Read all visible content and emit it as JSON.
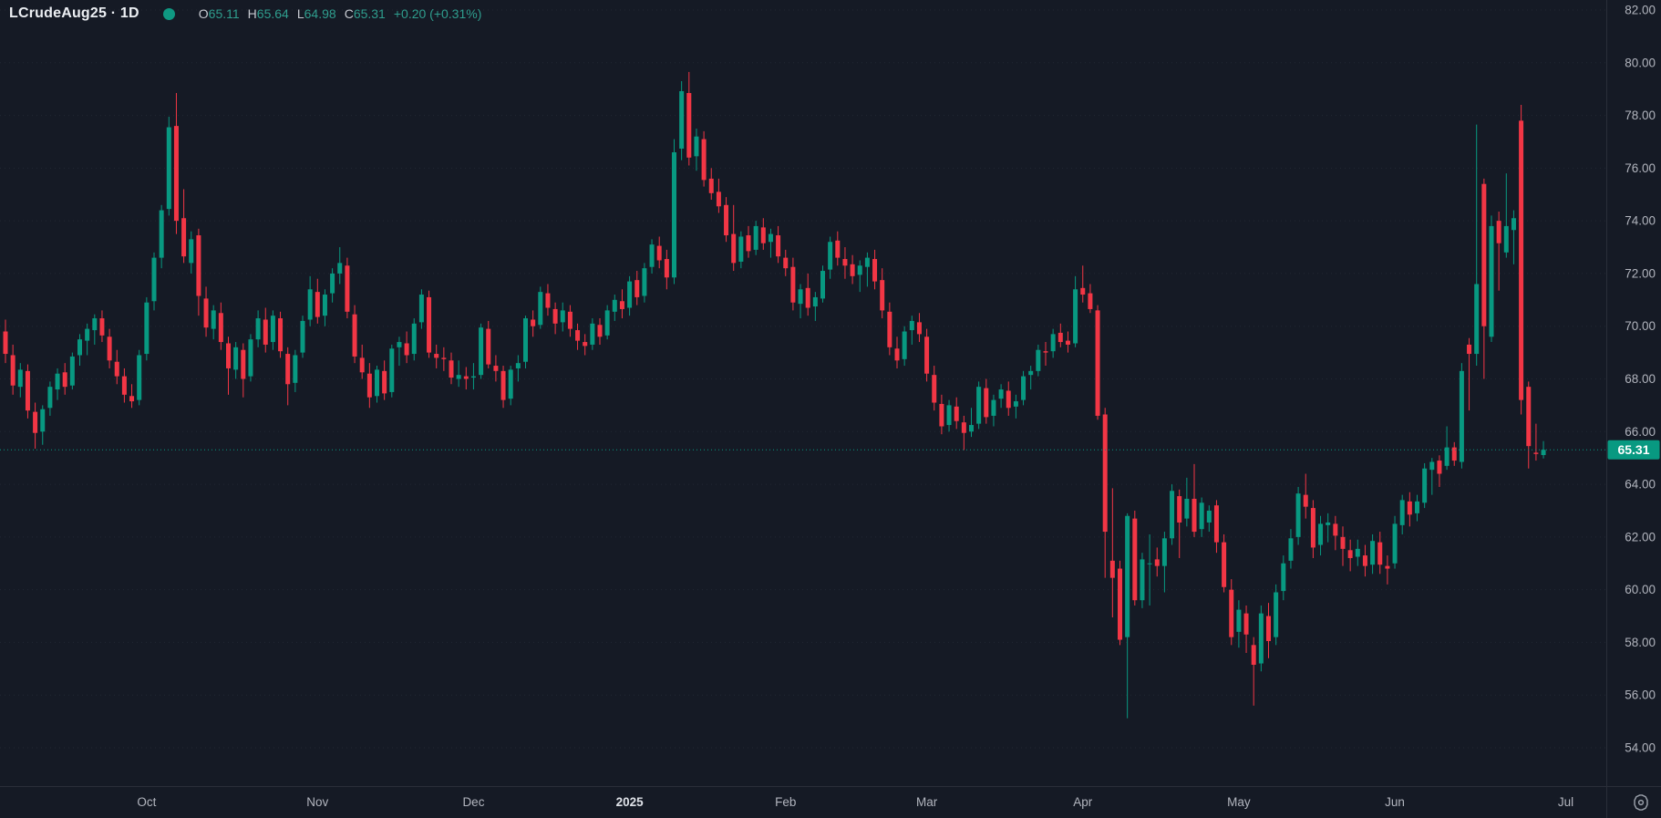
{
  "header": {
    "title": "LCrudeAug25 · 1D",
    "status_dot": "data-status-dot",
    "o_label": "O",
    "o_value": "65.11",
    "h_label": "H",
    "h_value": "65.64",
    "l_label": "L",
    "l_value": "64.98",
    "c_label": "C",
    "c_value": "65.31",
    "change": "+0.20 (+0.31%)"
  },
  "colors": {
    "background": "#151a25",
    "up": "#089981",
    "down": "#f23645",
    "axis_text": "#b2b5be",
    "axis_text_bright": "#dfe2e8",
    "grid": "rgba(134,144,166,0.12)",
    "border": "#2a2e39",
    "last_price_line": "#089981",
    "badge_bg": "#089981",
    "badge_text": "#ffffff",
    "header_value": "#2f9e8e",
    "gear": "#9aa0aa"
  },
  "price_axis": {
    "labels": [
      "82.00",
      "80.00",
      "78.00",
      "76.00",
      "74.00",
      "72.00",
      "70.00",
      "68.00",
      "66.00",
      "64.00",
      "62.00",
      "60.00",
      "58.00",
      "56.00",
      "54.00"
    ]
  },
  "last_price_badge": "65.31",
  "chart_data": {
    "type": "candlestick",
    "title": "LCrudeAug25 · 1D",
    "symbol": "LCrudeAug25",
    "timeframe": "1D",
    "last_price": 65.31,
    "change": 0.2,
    "change_pct": 0.31,
    "y_axis": {
      "min": 54,
      "max": 82,
      "step": 2,
      "grid": true
    },
    "x_axis_months": [
      {
        "label": "Oct",
        "index": 19,
        "bold": false
      },
      {
        "label": "Nov",
        "index": 42,
        "bold": false
      },
      {
        "label": "Dec",
        "index": 63,
        "bold": false
      },
      {
        "label": "2025",
        "index": 84,
        "bold": true
      },
      {
        "label": "Feb",
        "index": 105,
        "bold": false
      },
      {
        "label": "Mar",
        "index": 124,
        "bold": false
      },
      {
        "label": "Apr",
        "index": 145,
        "bold": false
      },
      {
        "label": "May",
        "index": 166,
        "bold": false
      },
      {
        "label": "Jun",
        "index": 187,
        "bold": false
      },
      {
        "label": "Jul",
        "index": 210,
        "bold": false
      }
    ],
    "ohlc_format": [
      "open",
      "high",
      "low",
      "close"
    ],
    "ohlc": [
      [
        69.8,
        70.25,
        68.6,
        68.95
      ],
      [
        68.9,
        69.3,
        67.4,
        67.75
      ],
      [
        67.7,
        68.6,
        67.3,
        68.35
      ],
      [
        68.3,
        68.55,
        66.5,
        66.8
      ],
      [
        66.75,
        67.1,
        65.35,
        65.95
      ],
      [
        66.0,
        67.0,
        65.5,
        66.85
      ],
      [
        66.9,
        67.9,
        66.6,
        67.7
      ],
      [
        67.6,
        68.4,
        67.2,
        68.2
      ],
      [
        68.25,
        68.6,
        67.4,
        67.7
      ],
      [
        67.75,
        69.0,
        67.6,
        68.85
      ],
      [
        68.9,
        69.7,
        68.5,
        69.5
      ],
      [
        69.45,
        70.1,
        68.9,
        69.9
      ],
      [
        69.85,
        70.45,
        69.3,
        70.3
      ],
      [
        70.3,
        70.6,
        69.4,
        69.65
      ],
      [
        69.6,
        69.9,
        68.4,
        68.7
      ],
      [
        68.65,
        69.1,
        67.8,
        68.1
      ],
      [
        68.1,
        68.4,
        67.1,
        67.4
      ],
      [
        67.35,
        67.8,
        66.9,
        67.15
      ],
      [
        67.2,
        69.1,
        67.0,
        68.9
      ],
      [
        68.95,
        71.1,
        68.7,
        70.9
      ],
      [
        70.95,
        72.8,
        70.6,
        72.6
      ],
      [
        72.6,
        74.6,
        72.2,
        74.4
      ],
      [
        74.45,
        77.95,
        74.2,
        77.55
      ],
      [
        77.6,
        78.85,
        73.5,
        74.0
      ],
      [
        74.1,
        75.2,
        72.4,
        72.65
      ],
      [
        72.4,
        73.6,
        72.0,
        73.3
      ],
      [
        73.45,
        73.7,
        70.4,
        71.15
      ],
      [
        71.05,
        71.5,
        69.6,
        69.95
      ],
      [
        69.9,
        70.8,
        69.5,
        70.6
      ],
      [
        70.5,
        70.9,
        69.1,
        69.4
      ],
      [
        69.35,
        69.6,
        67.4,
        68.4
      ],
      [
        68.35,
        69.4,
        68.0,
        69.2
      ],
      [
        69.1,
        69.35,
        67.3,
        68.0
      ],
      [
        68.1,
        69.7,
        67.9,
        69.5
      ],
      [
        69.5,
        70.6,
        69.2,
        70.3
      ],
      [
        70.25,
        70.7,
        69.0,
        69.3
      ],
      [
        69.4,
        70.6,
        69.1,
        70.4
      ],
      [
        70.3,
        70.55,
        68.8,
        69.05
      ],
      [
        68.95,
        69.2,
        67.0,
        67.8
      ],
      [
        67.85,
        69.1,
        67.5,
        68.9
      ],
      [
        69.0,
        70.4,
        68.8,
        70.2
      ],
      [
        70.25,
        71.9,
        70.0,
        71.4
      ],
      [
        71.3,
        71.8,
        70.1,
        70.35
      ],
      [
        70.4,
        71.4,
        70.0,
        71.2
      ],
      [
        71.25,
        72.2,
        70.9,
        72.0
      ],
      [
        72.0,
        73.0,
        71.6,
        72.4
      ],
      [
        72.3,
        72.6,
        70.3,
        70.55
      ],
      [
        70.45,
        70.8,
        68.6,
        68.85
      ],
      [
        68.8,
        69.3,
        68.0,
        68.25
      ],
      [
        68.2,
        68.6,
        66.9,
        67.3
      ],
      [
        67.35,
        68.5,
        67.1,
        68.35
      ],
      [
        68.3,
        68.7,
        67.2,
        67.45
      ],
      [
        67.5,
        69.3,
        67.3,
        69.15
      ],
      [
        69.2,
        69.6,
        68.5,
        69.4
      ],
      [
        69.35,
        69.8,
        68.6,
        68.9
      ],
      [
        68.95,
        70.3,
        68.7,
        70.1
      ],
      [
        70.15,
        71.4,
        69.9,
        71.2
      ],
      [
        71.1,
        71.35,
        68.8,
        69.0
      ],
      [
        68.95,
        69.3,
        68.4,
        68.8
      ],
      [
        68.8,
        69.2,
        68.3,
        68.75
      ],
      [
        68.7,
        69.0,
        67.8,
        68.05
      ],
      [
        68.0,
        68.7,
        67.7,
        68.15
      ],
      [
        68.1,
        68.45,
        67.6,
        68.0
      ],
      [
        68.05,
        68.6,
        67.6,
        68.1
      ],
      [
        68.15,
        70.1,
        68.0,
        69.95
      ],
      [
        69.9,
        70.2,
        68.4,
        68.55
      ],
      [
        68.5,
        68.9,
        67.9,
        68.3
      ],
      [
        68.3,
        68.5,
        66.9,
        67.2
      ],
      [
        67.25,
        68.5,
        67.0,
        68.35
      ],
      [
        68.4,
        68.9,
        67.9,
        68.6
      ],
      [
        68.65,
        70.4,
        68.4,
        70.3
      ],
      [
        70.25,
        70.6,
        69.6,
        70.0
      ],
      [
        70.05,
        71.5,
        69.9,
        71.3
      ],
      [
        71.25,
        71.6,
        70.4,
        70.7
      ],
      [
        70.65,
        70.9,
        69.7,
        70.1
      ],
      [
        70.15,
        70.9,
        69.8,
        70.6
      ],
      [
        70.55,
        70.8,
        69.6,
        69.9
      ],
      [
        69.85,
        70.1,
        69.1,
        69.45
      ],
      [
        69.4,
        69.7,
        68.9,
        69.25
      ],
      [
        69.3,
        70.3,
        69.1,
        70.1
      ],
      [
        70.05,
        70.3,
        69.3,
        69.6
      ],
      [
        69.65,
        70.8,
        69.5,
        70.6
      ],
      [
        70.55,
        71.2,
        70.2,
        71.0
      ],
      [
        70.95,
        71.4,
        70.3,
        70.65
      ],
      [
        70.7,
        71.9,
        70.4,
        71.7
      ],
      [
        71.75,
        72.1,
        70.8,
        71.1
      ],
      [
        71.15,
        72.4,
        70.9,
        72.2
      ],
      [
        72.25,
        73.3,
        72.0,
        73.1
      ],
      [
        73.05,
        73.4,
        72.2,
        72.5
      ],
      [
        72.55,
        72.9,
        71.4,
        71.85
      ],
      [
        71.85,
        77.1,
        71.6,
        76.6
      ],
      [
        76.74,
        79.3,
        76.3,
        78.92
      ],
      [
        78.85,
        79.65,
        76.1,
        76.4
      ],
      [
        76.45,
        77.5,
        75.9,
        77.2
      ],
      [
        77.1,
        77.4,
        75.3,
        75.55
      ],
      [
        75.6,
        76.0,
        74.8,
        75.05
      ],
      [
        75.1,
        75.6,
        74.3,
        74.55
      ],
      [
        74.6,
        74.9,
        73.2,
        73.45
      ],
      [
        73.5,
        74.6,
        72.1,
        72.4
      ],
      [
        72.45,
        73.6,
        72.2,
        73.4
      ],
      [
        73.45,
        73.8,
        72.6,
        72.85
      ],
      [
        72.9,
        74.0,
        72.7,
        73.8
      ],
      [
        73.75,
        74.1,
        72.9,
        73.15
      ],
      [
        73.2,
        73.7,
        72.6,
        73.5
      ],
      [
        73.45,
        73.8,
        72.4,
        72.65
      ],
      [
        72.6,
        72.9,
        71.9,
        72.2
      ],
      [
        72.25,
        72.6,
        70.6,
        70.9
      ],
      [
        70.85,
        71.6,
        70.3,
        71.4
      ],
      [
        71.45,
        72.0,
        70.4,
        70.7
      ],
      [
        70.75,
        71.3,
        70.2,
        71.1
      ],
      [
        71.05,
        72.3,
        70.9,
        72.1
      ],
      [
        72.15,
        73.4,
        71.8,
        73.2
      ],
      [
        73.25,
        73.6,
        72.3,
        72.6
      ],
      [
        72.55,
        73.0,
        71.8,
        72.3
      ],
      [
        72.35,
        72.7,
        71.6,
        71.9
      ],
      [
        71.95,
        72.5,
        71.3,
        72.3
      ],
      [
        72.25,
        72.8,
        71.5,
        72.6
      ],
      [
        72.55,
        72.9,
        71.4,
        71.7
      ],
      [
        71.75,
        72.2,
        70.3,
        70.6
      ],
      [
        70.55,
        70.9,
        68.9,
        69.2
      ],
      [
        69.15,
        69.6,
        68.4,
        68.7
      ],
      [
        68.75,
        70.0,
        68.5,
        69.8
      ],
      [
        69.85,
        70.4,
        69.3,
        70.2
      ],
      [
        70.15,
        70.5,
        69.4,
        69.7
      ],
      [
        69.6,
        69.9,
        67.9,
        68.2
      ],
      [
        68.15,
        68.5,
        66.8,
        67.1
      ],
      [
        67.05,
        67.4,
        65.9,
        66.2
      ],
      [
        66.25,
        67.2,
        66.0,
        67.0
      ],
      [
        66.95,
        67.3,
        66.1,
        66.4
      ],
      [
        66.35,
        66.6,
        65.3,
        65.95
      ],
      [
        66.0,
        66.9,
        65.8,
        66.25
      ],
      [
        66.3,
        67.9,
        66.1,
        67.7
      ],
      [
        67.65,
        68.0,
        66.3,
        66.55
      ],
      [
        66.6,
        67.4,
        66.2,
        67.2
      ],
      [
        67.25,
        67.8,
        66.9,
        67.6
      ],
      [
        67.55,
        67.9,
        66.6,
        66.9
      ],
      [
        66.95,
        67.4,
        66.5,
        67.15
      ],
      [
        67.2,
        68.3,
        67.0,
        68.1
      ],
      [
        68.15,
        68.5,
        67.6,
        68.3
      ],
      [
        68.3,
        69.3,
        68.1,
        69.1
      ],
      [
        69.05,
        69.4,
        68.5,
        69.0
      ],
      [
        69.05,
        69.9,
        68.8,
        69.7
      ],
      [
        69.75,
        70.1,
        69.2,
        69.4
      ],
      [
        69.45,
        69.8,
        69.0,
        69.3
      ],
      [
        69.35,
        71.9,
        69.2,
        71.4
      ],
      [
        71.45,
        72.3,
        70.9,
        71.2
      ],
      [
        71.25,
        71.6,
        70.5,
        70.65
      ],
      [
        70.6,
        70.8,
        66.45,
        66.6
      ],
      [
        66.65,
        66.9,
        60.45,
        62.2
      ],
      [
        61.1,
        63.85,
        58.95,
        60.45
      ],
      [
        60.8,
        61.1,
        57.9,
        58.1
      ],
      [
        58.2,
        62.9,
        55.12,
        62.8
      ],
      [
        62.7,
        63.0,
        59.4,
        59.6
      ],
      [
        59.6,
        61.4,
        59.3,
        61.15
      ],
      [
        61.0,
        62.1,
        59.4,
        61.0
      ],
      [
        61.15,
        61.6,
        60.5,
        60.9
      ],
      [
        60.9,
        62.2,
        59.9,
        61.95
      ],
      [
        61.95,
        64.0,
        61.7,
        63.75
      ],
      [
        63.55,
        63.8,
        61.2,
        62.55
      ],
      [
        62.7,
        64.25,
        62.4,
        63.45
      ],
      [
        63.45,
        64.77,
        62.0,
        62.2
      ],
      [
        62.3,
        63.5,
        62.0,
        63.3
      ],
      [
        62.55,
        63.2,
        62.2,
        63.0
      ],
      [
        63.2,
        63.4,
        61.4,
        61.8
      ],
      [
        61.8,
        62.1,
        59.9,
        60.1
      ],
      [
        60.0,
        60.4,
        57.9,
        58.2
      ],
      [
        58.4,
        59.6,
        57.8,
        59.24
      ],
      [
        59.1,
        59.4,
        57.6,
        58.3
      ],
      [
        57.9,
        58.2,
        55.6,
        57.15
      ],
      [
        57.2,
        59.4,
        56.9,
        59.1
      ],
      [
        59.0,
        59.5,
        57.4,
        58.05
      ],
      [
        58.2,
        60.2,
        57.9,
        59.9
      ],
      [
        59.95,
        61.3,
        59.6,
        61.0
      ],
      [
        61.1,
        62.3,
        60.8,
        61.95
      ],
      [
        62.0,
        63.9,
        61.7,
        63.65
      ],
      [
        63.6,
        64.4,
        62.7,
        63.15
      ],
      [
        63.1,
        63.4,
        61.2,
        61.6
      ],
      [
        61.7,
        62.8,
        61.3,
        62.5
      ],
      [
        62.45,
        62.9,
        61.8,
        62.55
      ],
      [
        62.5,
        62.8,
        61.5,
        62.05
      ],
      [
        62.0,
        62.4,
        60.9,
        61.55
      ],
      [
        61.5,
        61.9,
        60.7,
        61.2
      ],
      [
        61.25,
        61.9,
        60.9,
        61.55
      ],
      [
        61.3,
        61.7,
        60.5,
        60.9
      ],
      [
        60.95,
        62.1,
        60.6,
        61.85
      ],
      [
        61.8,
        62.2,
        60.6,
        60.95
      ],
      [
        60.9,
        61.3,
        60.2,
        60.8
      ],
      [
        61.0,
        62.8,
        60.8,
        62.5
      ],
      [
        62.45,
        63.6,
        62.1,
        63.4
      ],
      [
        63.35,
        63.7,
        62.4,
        62.85
      ],
      [
        62.9,
        63.6,
        62.6,
        63.35
      ],
      [
        63.3,
        64.8,
        63.1,
        64.6
      ],
      [
        64.55,
        65.0,
        63.6,
        64.85
      ],
      [
        64.9,
        65.1,
        63.9,
        64.4
      ],
      [
        64.7,
        66.2,
        64.55,
        65.4
      ],
      [
        65.4,
        65.6,
        64.7,
        64.9
      ],
      [
        64.85,
        68.6,
        64.6,
        68.3
      ],
      [
        69.3,
        69.55,
        66.8,
        68.95
      ],
      [
        68.95,
        77.65,
        68.5,
        71.6
      ],
      [
        75.4,
        75.6,
        68.0,
        70.0
      ],
      [
        69.6,
        74.2,
        69.4,
        73.8
      ],
      [
        74.0,
        74.35,
        71.35,
        73.15
      ],
      [
        72.8,
        75.8,
        72.6,
        73.8
      ],
      [
        73.65,
        74.4,
        72.35,
        74.1
      ],
      [
        77.8,
        78.4,
        66.65,
        67.2
      ],
      [
        67.7,
        67.9,
        64.6,
        65.45
      ],
      [
        65.2,
        66.3,
        64.9,
        65.15
      ],
      [
        65.11,
        65.64,
        64.98,
        65.31
      ]
    ]
  }
}
